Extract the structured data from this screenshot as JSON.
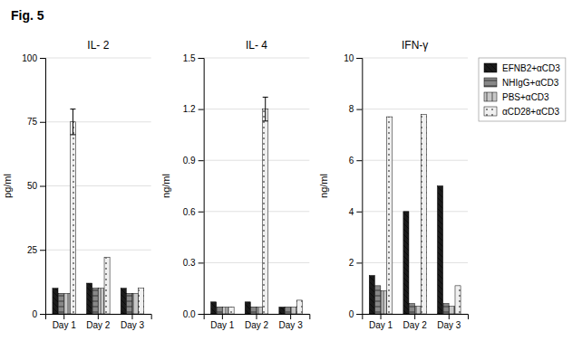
{
  "title": "Fig. 5",
  "chart_data": [
    {
      "type": "bar",
      "title": "IL- 2",
      "ylabel": "pg/ml",
      "categories": [
        "Day 1",
        "Day 2",
        "Day 3"
      ],
      "series": [
        {
          "name": "EFNB2+αCD3",
          "color": "#1a1a1a",
          "values": [
            10,
            12,
            10
          ],
          "errors": [
            0,
            0,
            0
          ]
        },
        {
          "name": "NHIgG+αCD3",
          "color": "#888888",
          "values": [
            8,
            10,
            8
          ],
          "errors": [
            0,
            0,
            0
          ]
        },
        {
          "name": "PBS+αCD3",
          "color": "#c8c8c8",
          "values": [
            8,
            10,
            8
          ],
          "errors": [
            0,
            0,
            0
          ]
        },
        {
          "name": "αCD28+αCD3",
          "color": "#f0f0f0",
          "values": [
            75,
            22,
            10
          ],
          "errors": [
            5,
            0,
            0
          ]
        }
      ],
      "ylim": [
        0,
        100
      ],
      "yticks": [
        0,
        25,
        50,
        75,
        100
      ],
      "grid": true
    },
    {
      "type": "bar",
      "title": "IL- 4",
      "ylabel": "ng/ml",
      "categories": [
        "Day 1",
        "Day 2",
        "Day 3"
      ],
      "series": [
        {
          "name": "EFNB2+αCD3",
          "color": "#1a1a1a",
          "values": [
            0.07,
            0.07,
            0.04
          ],
          "errors": [
            0,
            0,
            0
          ]
        },
        {
          "name": "NHIgG+αCD3",
          "color": "#888888",
          "values": [
            0.04,
            0.04,
            0.04
          ],
          "errors": [
            0,
            0,
            0
          ]
        },
        {
          "name": "PBS+αCD3",
          "color": "#c8c8c8",
          "values": [
            0.04,
            0.04,
            0.04
          ],
          "errors": [
            0,
            0,
            0
          ]
        },
        {
          "name": "αCD28+αCD3",
          "color": "#f0f0f0",
          "values": [
            0.04,
            1.2,
            0.08
          ],
          "errors": [
            0,
            0.07,
            0
          ]
        }
      ],
      "ylim": [
        0,
        1.5
      ],
      "yticks": [
        {
          "value": 0,
          "label": "0.0"
        },
        0.3,
        0.6,
        0.9,
        1.2,
        1.5
      ],
      "grid": true
    },
    {
      "type": "bar",
      "title": "IFN-γ",
      "ylabel": "ng/ml",
      "categories": [
        "Day 1",
        "Day 2",
        "Day 3"
      ],
      "series": [
        {
          "name": "EFNB2+αCD3",
          "color": "#1a1a1a",
          "values": [
            1.5,
            4.0,
            5.0
          ],
          "errors": [
            0,
            0,
            0
          ]
        },
        {
          "name": "NHIgG+αCD3",
          "color": "#888888",
          "values": [
            1.1,
            0.4,
            0.4
          ],
          "errors": [
            0,
            0,
            0
          ]
        },
        {
          "name": "PBS+αCD3",
          "color": "#c8c8c8",
          "values": [
            0.9,
            0.3,
            0.3
          ],
          "errors": [
            0,
            0,
            0
          ]
        },
        {
          "name": "αCD28+αCD3",
          "color": "#f0f0f0",
          "values": [
            7.7,
            7.8,
            1.1
          ],
          "errors": [
            0,
            0,
            0
          ]
        }
      ],
      "ylim": [
        0,
        10
      ],
      "yticks": [
        0,
        2,
        4,
        6,
        8,
        10
      ],
      "grid": true,
      "legend": "right"
    }
  ]
}
